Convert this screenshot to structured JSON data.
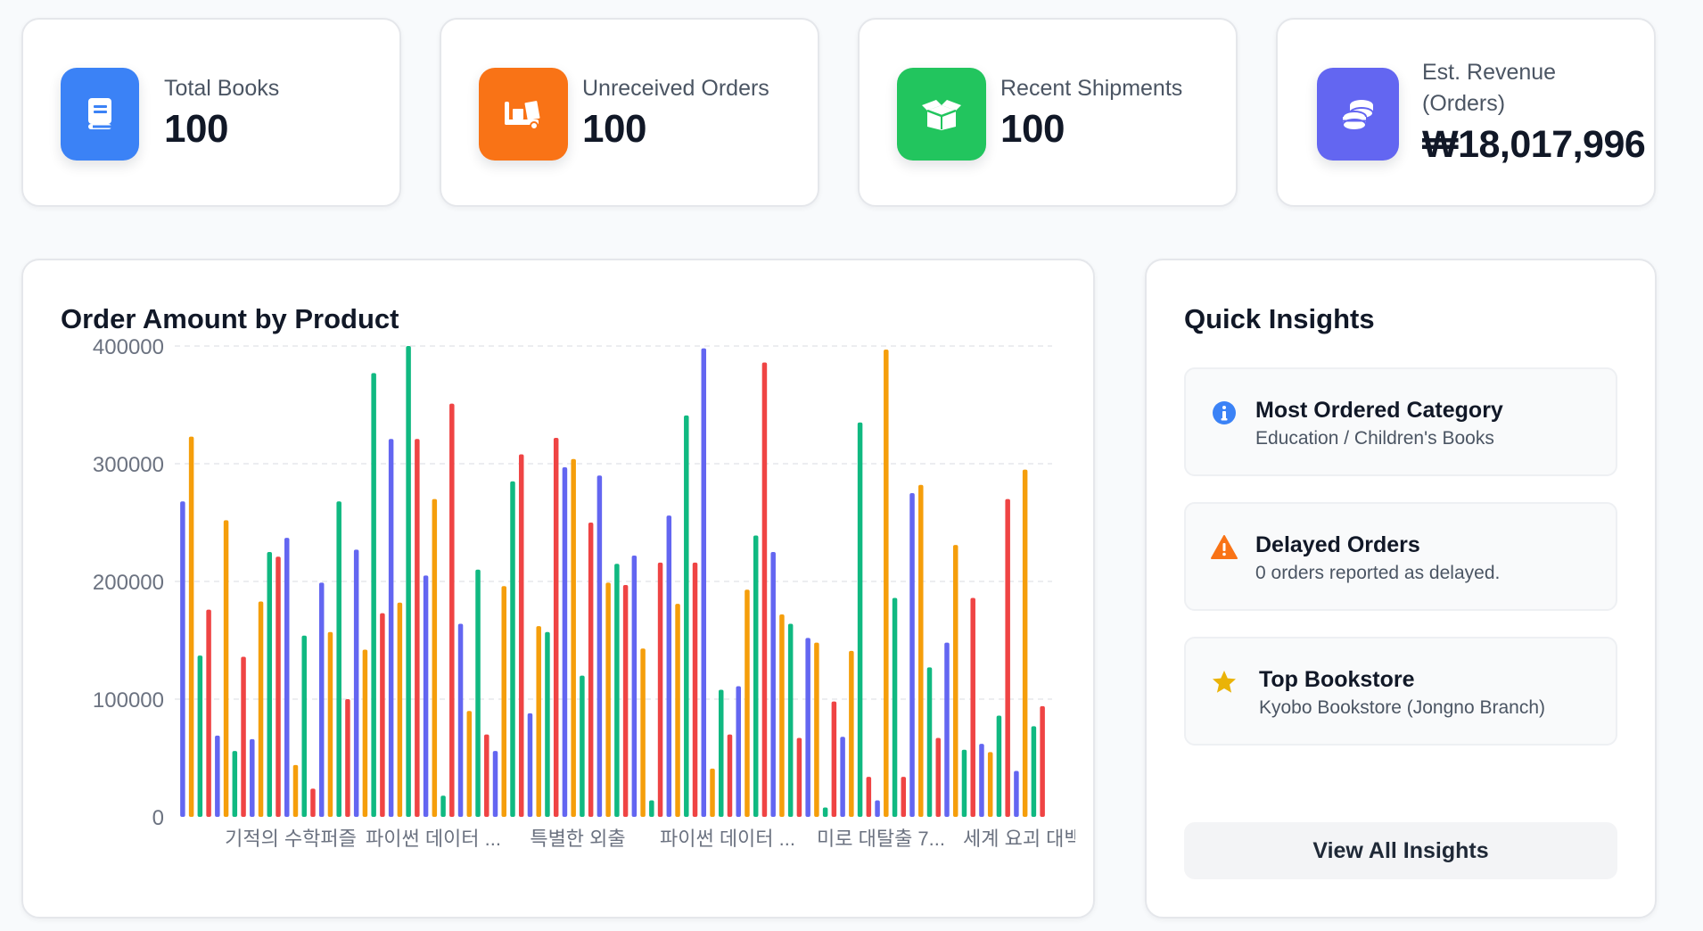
{
  "stats": [
    {
      "label": "Total Books",
      "value": "100",
      "icon": "book-icon",
      "color": "#3b82f6"
    },
    {
      "label": "Unreceived Orders",
      "value": "100",
      "icon": "truck-loading-icon",
      "color": "#f97316"
    },
    {
      "label": "Recent Shipments",
      "value": "100",
      "icon": "box-open-icon",
      "color": "#22c55e"
    },
    {
      "label": "Est. Revenue (Orders)",
      "value": "₩18,017,996",
      "icon": "coins-icon",
      "color": "#6366f1"
    }
  ],
  "chart": {
    "title": "Order Amount by Product"
  },
  "chart_data": {
    "type": "bar",
    "title": "Order Amount by Product",
    "xlabel": "",
    "ylabel": "",
    "ylim": [
      0,
      400000
    ],
    "yticks": [
      0,
      100000,
      200000,
      300000,
      400000
    ],
    "xtick_labels": [
      "기적의 수학퍼즐",
      "파이썬 데이터 ...",
      "특별한 외출",
      "파이썬 데이터 ...",
      "미로 대탈출 7...",
      "세계 요괴 대백..."
    ],
    "series_colors": [
      "#6366f1",
      "#f59e0b",
      "#10b981",
      "#ef4444"
    ],
    "values": [
      268000,
      323000,
      137000,
      176000,
      69000,
      252000,
      56000,
      136000,
      66000,
      183000,
      225000,
      221000,
      237000,
      44000,
      154000,
      24000,
      199000,
      157000,
      268000,
      100000,
      227000,
      142000,
      377000,
      173000,
      321000,
      182000,
      400000,
      321000,
      205000,
      270000,
      18000,
      351000,
      164000,
      90000,
      210000,
      70000,
      56000,
      196000,
      285000,
      308000,
      88000,
      162000,
      157000,
      322000,
      297000,
      304000,
      120000,
      250000,
      290000,
      199000,
      215000,
      197000,
      222000,
      143000,
      14000,
      216000,
      256000,
      181000,
      341000,
      216000,
      398000,
      41000,
      108000,
      70000,
      111000,
      193000,
      239000,
      386000,
      225000,
      172000,
      164000,
      67000,
      152000,
      148000,
      8000,
      98000,
      68000,
      141000,
      335000,
      34000,
      14000,
      397000,
      186000,
      34000,
      275000,
      282000,
      127000,
      67000,
      148000,
      231000,
      57000,
      186000,
      62000,
      55000,
      86000,
      270000,
      39000,
      295000,
      77000,
      94000
    ]
  },
  "insights": {
    "title": "Quick Insights",
    "items": [
      {
        "title": "Most Ordered Category",
        "sub": "Education / Children's Books",
        "icon": "info-circle-icon",
        "color": "#3b82f6"
      },
      {
        "title": "Delayed Orders",
        "sub": "0 orders reported as delayed.",
        "icon": "warning-triangle-icon",
        "color": "#f97316"
      },
      {
        "title": "Top Bookstore",
        "sub": "Kyobo Bookstore (Jongno Branch)",
        "icon": "star-icon",
        "color": "#eab308"
      }
    ],
    "button": "View All Insights"
  }
}
